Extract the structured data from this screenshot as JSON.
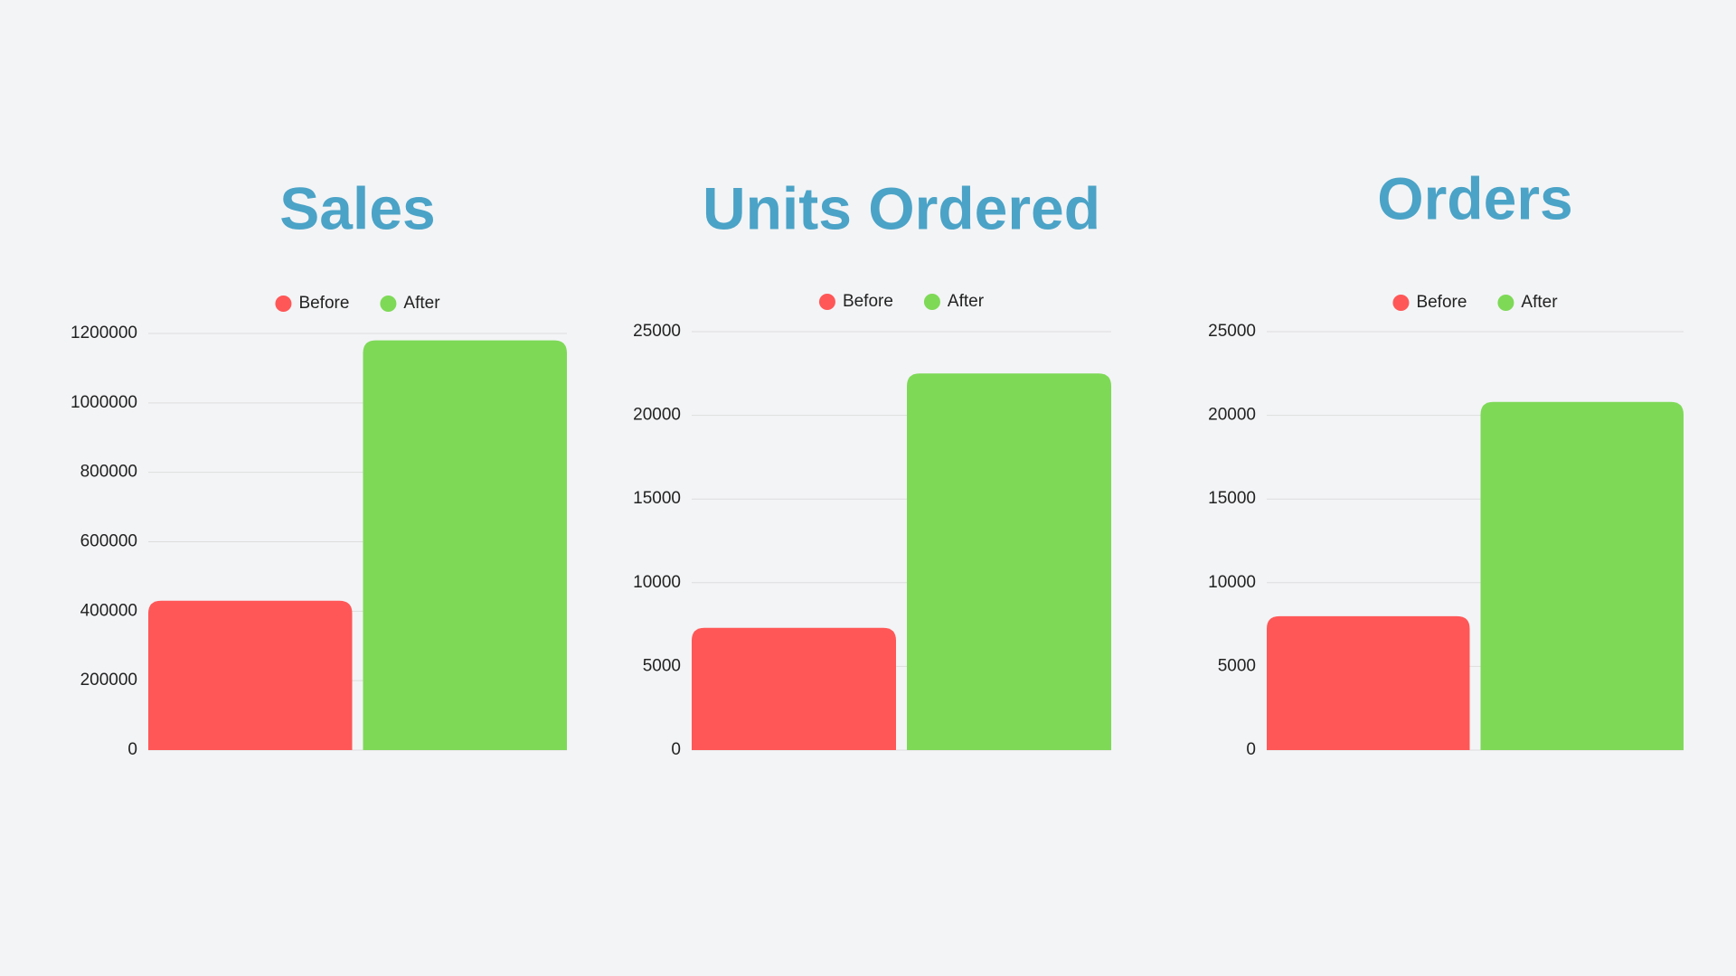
{
  "chart_data": [
    {
      "type": "bar",
      "title": "Sales",
      "categories": [
        null
      ],
      "series": [
        {
          "name": "Before",
          "color": "#ff5757",
          "values": [
            430000
          ]
        },
        {
          "name": "After",
          "color": "#7ed957",
          "values": [
            1180000
          ]
        }
      ],
      "ylim": [
        0,
        1200000
      ],
      "yticks": [
        0,
        200000,
        400000,
        600000,
        800000,
        1000000,
        1200000
      ],
      "grid": true
    },
    {
      "type": "bar",
      "title": "Units Ordered",
      "categories": [
        null
      ],
      "series": [
        {
          "name": "Before",
          "color": "#ff5757",
          "values": [
            7300
          ]
        },
        {
          "name": "After",
          "color": "#7ed957",
          "values": [
            22500
          ]
        }
      ],
      "ylim": [
        0,
        25000
      ],
      "yticks": [
        0,
        5000,
        10000,
        15000,
        20000,
        25000
      ],
      "grid": true
    },
    {
      "type": "bar",
      "title": "Orders",
      "categories": [
        null
      ],
      "series": [
        {
          "name": "Before",
          "color": "#ff5757",
          "values": [
            8000
          ]
        },
        {
          "name": "After",
          "color": "#7ed957",
          "values": [
            20800
          ]
        }
      ],
      "ylim": [
        0,
        25000
      ],
      "yticks": [
        0,
        5000,
        10000,
        15000,
        20000,
        25000
      ],
      "grid": true
    }
  ]
}
